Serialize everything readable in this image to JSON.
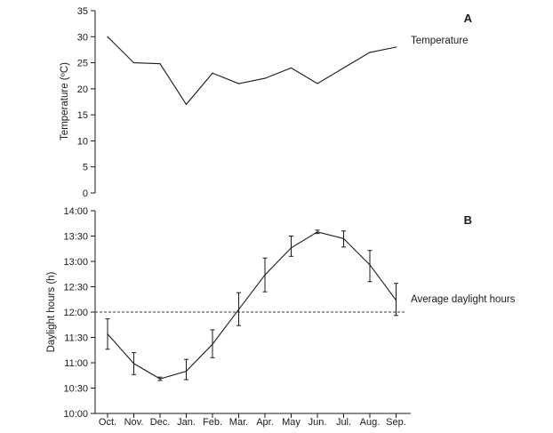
{
  "chart_data": [
    {
      "type": "line",
      "panel_label": "A",
      "ylabel": "Temperature (ºC)",
      "ylim": [
        0,
        35
      ],
      "y_ticks": [
        "0",
        "5",
        "10",
        "15",
        "20",
        "25",
        "30",
        "35"
      ],
      "categories": [
        "Oct.",
        "Nov.",
        "Dec.",
        "Jan.",
        "Feb.",
        "Mar.",
        "Apr.",
        "May",
        "Jun.",
        "Jul.",
        "Aug.",
        "Sep."
      ],
      "series": [
        {
          "name": "Temperature",
          "values": [
            30,
            25,
            24.8,
            17,
            23,
            21,
            22,
            24,
            21,
            24,
            27,
            28
          ]
        }
      ],
      "grid": false
    },
    {
      "type": "line",
      "panel_label": "B",
      "ylabel": "Daylight hours (h)",
      "ylim": [
        "10:00",
        "14:00"
      ],
      "y_ticks": [
        "10:00",
        "10:30",
        "11:00",
        "11:30",
        "12:00",
        "12:30",
        "13:00",
        "13:30",
        "14:00"
      ],
      "categories": [
        "Oct.",
        "Nov.",
        "Dec.",
        "Jan.",
        "Feb.",
        "Mar.",
        "Apr.",
        "May",
        "Jun.",
        "Jul.",
        "Aug.",
        "Sep."
      ],
      "series": [
        {
          "values": [
            "11:34",
            "10:59",
            "10:41",
            "10:50",
            "11:22",
            "12:03",
            "12:44",
            "13:16",
            "13:35",
            "13:27",
            "12:56",
            "12:14"
          ],
          "error_low": [
            "11:16",
            "10:46",
            "10:39",
            "10:40",
            "11:06",
            "11:44",
            "12:24",
            "13:06",
            "13:33",
            "13:17",
            "12:36",
            "11:56"
          ],
          "error_high": [
            "11:52",
            "11:12",
            "10:43",
            "11:04",
            "11:39",
            "12:23",
            "13:04",
            "13:30",
            "13:37",
            "13:36",
            "13:13",
            "12:34"
          ]
        }
      ],
      "reference_line": {
        "label": "Average daylight hours",
        "value": "12:00"
      },
      "grid": false
    }
  ]
}
